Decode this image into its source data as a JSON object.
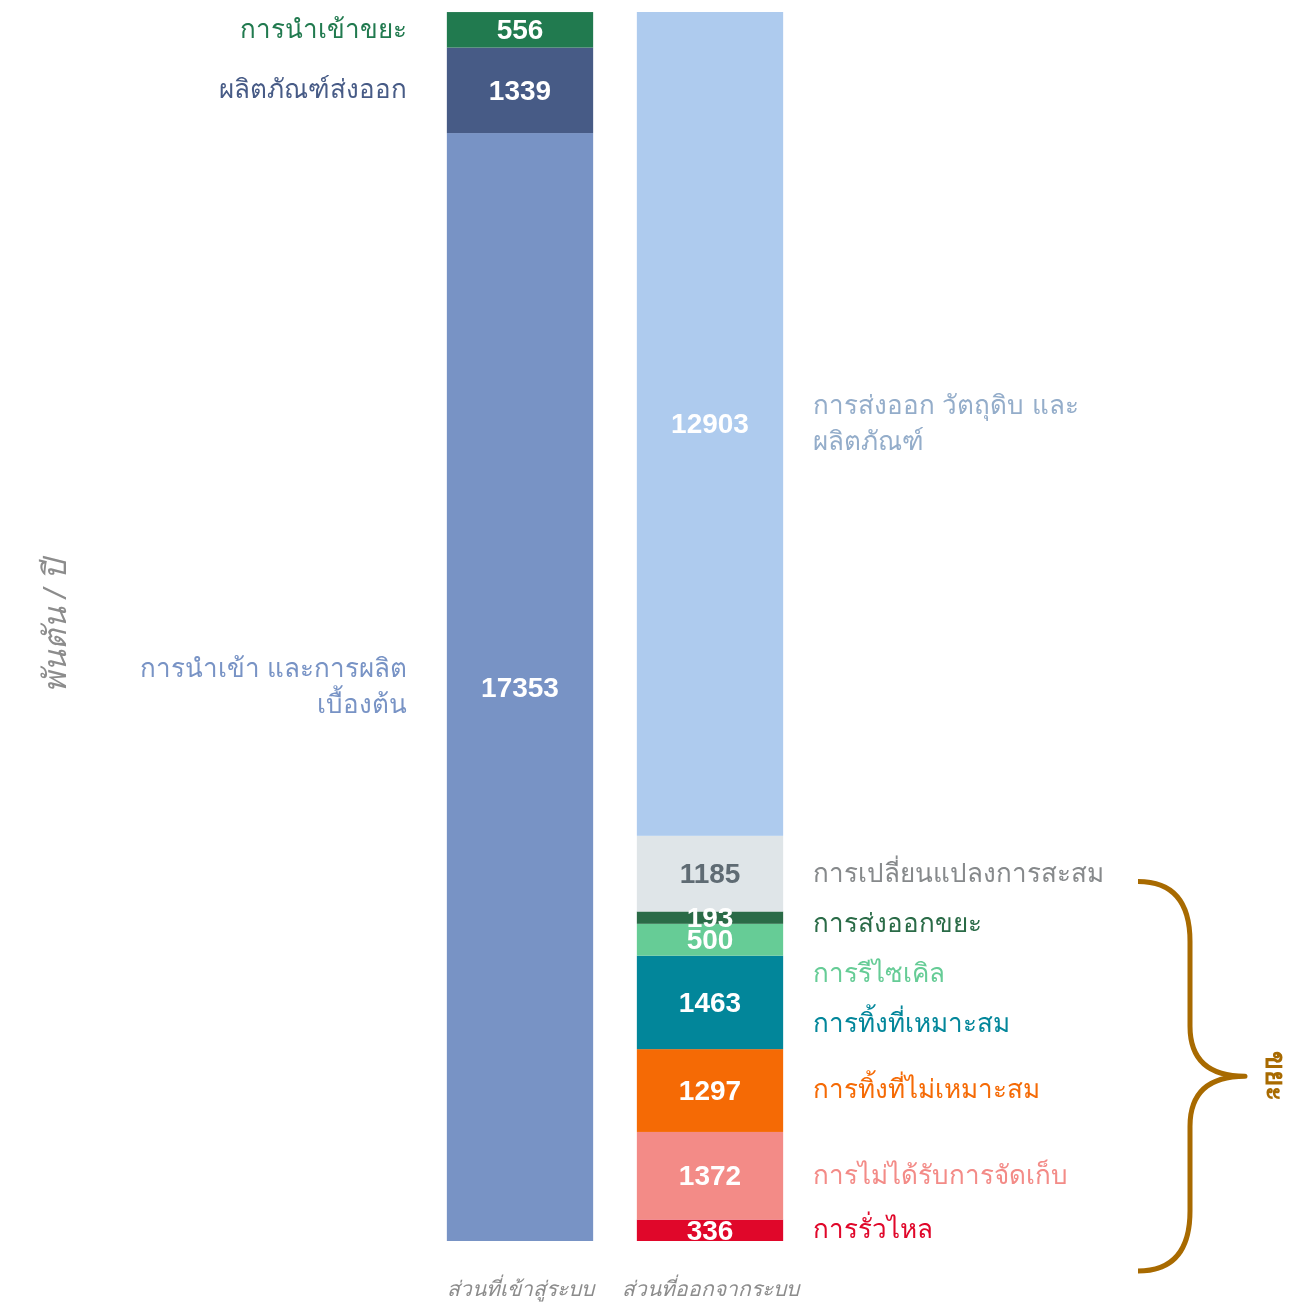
{
  "chart_data": {
    "type": "bar",
    "stacked": true,
    "data_labels": true,
    "annotations": [
      "พันตัน / ปี",
      "ขยะ"
    ],
    "categories": [
      "ส่วนที่เข้าสู่ระบบ",
      "ส่วนที่ออกจากระบบ"
    ],
    "series": [
      {
        "name": "การนำเข้า และการผลิต เบื้องต้น",
        "color": "#7893c5",
        "values": [
          17353,
          null
        ]
      },
      {
        "name": "ผลิตภัณฑ์ส่งออก",
        "color": "#475b86",
        "values": [
          1339,
          null
        ]
      },
      {
        "name": "การนำเข้าขยะ",
        "color": "#217a4f",
        "values": [
          556,
          null
        ]
      },
      {
        "name": "การรั่วไหล",
        "color": "#e0072a",
        "values": [
          null,
          336
        ]
      },
      {
        "name": "การไม่ได้รับการจัดเก็บ",
        "color": "#f38b87",
        "values": [
          null,
          1372
        ]
      },
      {
        "name": "การทิ้งที่ไม่เหมาะสม",
        "color": "#f56a05",
        "values": [
          null,
          1297
        ]
      },
      {
        "name": "การทิ้งที่เหมาะสม",
        "color": "#02869a",
        "values": [
          null,
          1463
        ]
      },
      {
        "name": "การรีไซเคิล",
        "color": "#66cc96",
        "values": [
          null,
          500
        ]
      },
      {
        "name": "การส่งออกขยะ",
        "color": "#2a6b47",
        "values": [
          null,
          193
        ]
      },
      {
        "name": "การเปลี่ยนแปลงการสะสม",
        "color": "#dfe5e8",
        "values": [
          null,
          1185
        ]
      },
      {
        "name": "การส่งออก วัตถุดิบ และ ผลิตภัณฑ์",
        "color": "#aecbee",
        "values": [
          null,
          12903
        ]
      }
    ]
  }
}
